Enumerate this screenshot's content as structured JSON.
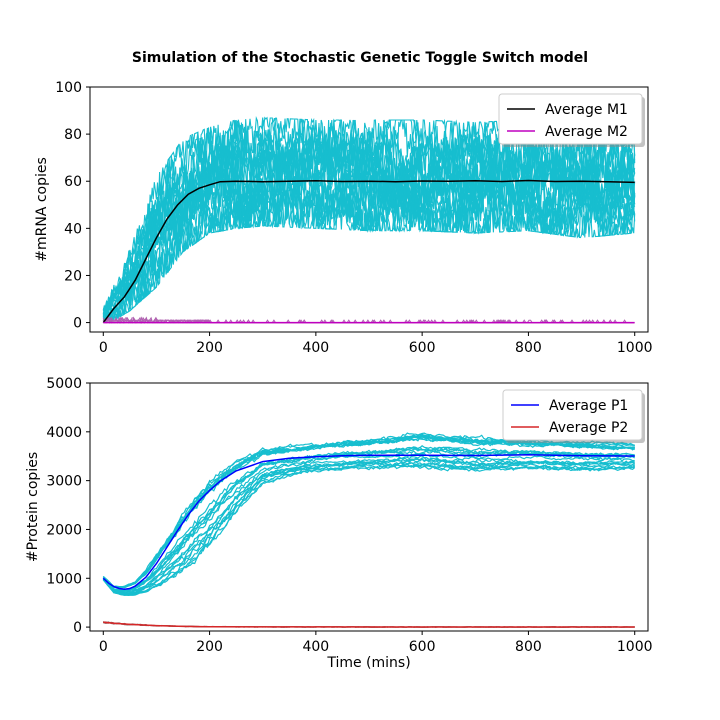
{
  "figure": {
    "title": "Simulation of the Stochastic Genetic Toggle Switch model"
  },
  "colors": {
    "trajectories": "#17becf",
    "m1": "#000000",
    "m2": "#bf00bf",
    "m2_samples": "#b060b0",
    "p1": "#0000ff",
    "p2": "#d62728",
    "p2_samples": "#8c6464"
  },
  "chart_data": [
    {
      "type": "line",
      "title": "Simulation of the Stochastic Genetic Toggle Switch model",
      "xlabel": "",
      "ylabel": "#mRNA copies",
      "xlim": [
        -25,
        1025
      ],
      "ylim": [
        -4,
        100
      ],
      "xticks": [
        0,
        200,
        400,
        600,
        800,
        1000
      ],
      "yticks": [
        0,
        20,
        40,
        60,
        80,
        100
      ],
      "legend_position": "top-right",
      "series": [
        {
          "name": "Average M1",
          "color": "#000000",
          "x": [
            0,
            20,
            40,
            60,
            80,
            100,
            120,
            140,
            160,
            180,
            200,
            220,
            250,
            300,
            350,
            400,
            450,
            500,
            550,
            600,
            650,
            700,
            750,
            800,
            850,
            900,
            950,
            1000
          ],
          "values": [
            0,
            6,
            11,
            18,
            27,
            36,
            44,
            50,
            54.5,
            57,
            58.5,
            59.8,
            60,
            59.8,
            60,
            60.2,
            59.9,
            60,
            59.8,
            60.1,
            60,
            60.2,
            59.9,
            60.3,
            59.9,
            60,
            59.8,
            59.5
          ]
        },
        {
          "name": "Average M2",
          "color": "#bf00bf",
          "x": [
            0,
            1000
          ],
          "values": [
            0,
            0
          ]
        }
      ],
      "trajectory_band": {
        "description_color": "#17becf",
        "x": [
          0,
          20,
          50,
          100,
          150,
          200,
          250,
          300,
          400,
          500,
          600,
          700,
          800,
          900,
          1000
        ],
        "lower": [
          0,
          1,
          5,
          15,
          30,
          38,
          40,
          41,
          40,
          39,
          39,
          38,
          39,
          36,
          38
        ],
        "upper": [
          6,
          16,
          32,
          62,
          78,
          83,
          86,
          87,
          86,
          86,
          86,
          85,
          86,
          85,
          85
        ]
      }
    },
    {
      "type": "line",
      "title": "",
      "xlabel": "Time (mins)",
      "ylabel": "#Protein copies",
      "xlim": [
        -25,
        1025
      ],
      "ylim": [
        -80,
        5000
      ],
      "xticks": [
        0,
        200,
        400,
        600,
        800,
        1000
      ],
      "yticks": [
        0,
        1000,
        2000,
        3000,
        4000,
        5000
      ],
      "legend_position": "top-right",
      "series": [
        {
          "name": "Average P1",
          "color": "#0000ff",
          "x": [
            0,
            10,
            20,
            30,
            40,
            50,
            60,
            80,
            100,
            120,
            140,
            160,
            180,
            200,
            220,
            250,
            300,
            350,
            400,
            450,
            500,
            600,
            700,
            800,
            900,
            1000
          ],
          "values": [
            1000,
            900,
            830,
            790,
            775,
            790,
            840,
            1020,
            1300,
            1640,
            1980,
            2300,
            2580,
            2800,
            2990,
            3200,
            3390,
            3460,
            3490,
            3510,
            3520,
            3520,
            3515,
            3530,
            3510,
            3505
          ]
        },
        {
          "name": "Average P2",
          "color": "#d62728",
          "x": [
            0,
            20,
            50,
            100,
            150,
            200,
            300,
            400,
            600,
            800,
            1000
          ],
          "values": [
            100,
            80,
            55,
            30,
            15,
            8,
            4,
            3,
            2,
            2,
            2
          ]
        }
      ],
      "trajectory_band": {
        "x": [
          0,
          20,
          40,
          60,
          80,
          100,
          150,
          200,
          250,
          300,
          400,
          500,
          600,
          700,
          800,
          900,
          1000
        ],
        "lower": [
          950,
          680,
          620,
          620,
          640,
          700,
          950,
          1450,
          2200,
          2850,
          3100,
          3180,
          3150,
          3100,
          3150,
          3120,
          3150
        ],
        "upper": [
          1050,
          850,
          860,
          960,
          1200,
          1550,
          2450,
          3100,
          3500,
          3700,
          3820,
          3900,
          4050,
          3950,
          3900,
          3850,
          3800
        ]
      }
    }
  ]
}
